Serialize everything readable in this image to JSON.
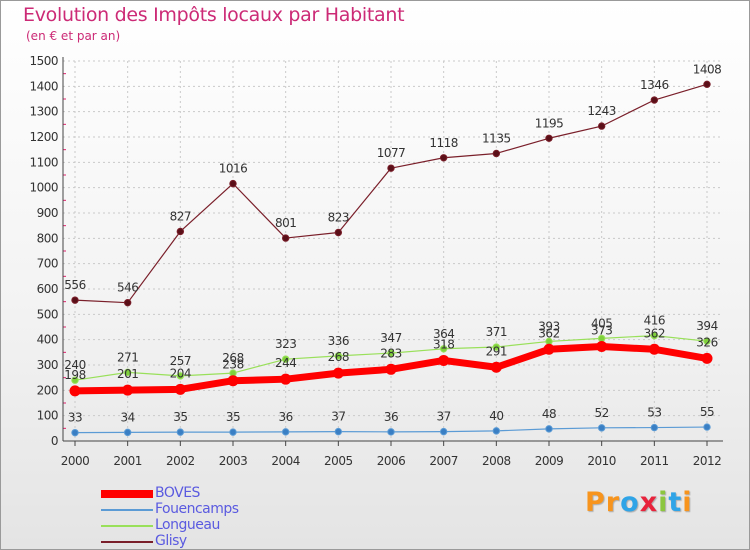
{
  "chart_data": {
    "type": "line",
    "title": "Evolution des Impôts locaux par Habitant",
    "subtitle": "(en € et par an)",
    "xlabel": "",
    "ylabel": "",
    "categories": [
      "2000",
      "2001",
      "2002",
      "2003",
      "2004",
      "2005",
      "2006",
      "2007",
      "2008",
      "2009",
      "2010",
      "2011",
      "2012"
    ],
    "ylim": [
      0,
      1500
    ],
    "yticks": [
      0,
      100,
      200,
      300,
      400,
      500,
      600,
      700,
      800,
      900,
      1000,
      1100,
      1200,
      1300,
      1400,
      1500
    ],
    "grid": true,
    "series": [
      {
        "name": "BOVES",
        "color": "#ff0000",
        "values": [
          198,
          201,
          204,
          238,
          244,
          268,
          283,
          318,
          291,
          362,
          373,
          362,
          326
        ]
      },
      {
        "name": "Fouencamps",
        "color": "#5b9bd5",
        "values": [
          33,
          34,
          35,
          35,
          36,
          37,
          36,
          37,
          40,
          48,
          52,
          53,
          55
        ]
      },
      {
        "name": "Longueau",
        "color": "#99e05a",
        "values": [
          240,
          271,
          257,
          268,
          323,
          336,
          347,
          364,
          371,
          393,
          405,
          416,
          394
        ]
      },
      {
        "name": "Glisy",
        "color": "#7a1f2a",
        "values": [
          556,
          546,
          827,
          1016,
          801,
          823,
          1077,
          1118,
          1135,
          1195,
          1243,
          1346,
          1408
        ]
      }
    ]
  },
  "logo": {
    "letters": [
      "P",
      "r",
      "o",
      "x",
      "i",
      "t",
      "i"
    ],
    "colors": [
      "#f7941d",
      "#f7941d",
      "#2fa4e7",
      "#e8233c",
      "#8cc63f",
      "#2fa4e7",
      "#f7941d"
    ]
  }
}
